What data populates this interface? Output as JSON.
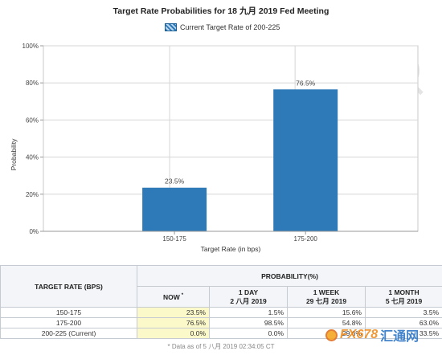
{
  "chart_data": {
    "type": "bar",
    "title": "Target Rate Probabilities for 18 九月 2019 Fed Meeting",
    "legend": "Current Target Rate of 200-225",
    "xlabel": "Target Rate (in bps)",
    "ylabel": "Probability",
    "categories": [
      "150-175",
      "175-200"
    ],
    "values": [
      23.5,
      76.5
    ],
    "data_labels": [
      "23.5%",
      "76.5%"
    ],
    "ylim": [
      0,
      100
    ],
    "yticks": [
      0,
      20,
      40,
      60,
      80,
      100
    ],
    "ytick_labels": [
      "0%",
      "20%",
      "40%",
      "60%",
      "80%",
      "100%"
    ],
    "grid": true,
    "legend_position": "top-center",
    "colors": {
      "bar": "#2e7ab8"
    }
  },
  "table": {
    "col_header": "TARGET RATE (BPS)",
    "group_header": "PROBABILITY(%)",
    "columns": [
      {
        "title": "NOW",
        "marker": "*",
        "subtitle": ""
      },
      {
        "title": "1 DAY",
        "subtitle": "2 八月 2019"
      },
      {
        "title": "1 WEEK",
        "subtitle": "29 七月 2019"
      },
      {
        "title": "1 MONTH",
        "subtitle": "5 七月 2019"
      }
    ],
    "rows": [
      {
        "rate": "150-175",
        "values": [
          "23.5%",
          "1.5%",
          "15.6%",
          "3.5%"
        ]
      },
      {
        "rate": "175-200",
        "values": [
          "76.5%",
          "98.5%",
          "54.8%",
          "63.0%"
        ]
      },
      {
        "rate": "200-225 (Current)",
        "values": [
          "0.0%",
          "0.0%",
          "29.6%",
          "33.5%"
        ]
      }
    ]
  },
  "footnote": "* Data as of 5 八月 2019 02:34:05 CT",
  "watermark": {
    "en": "FX678",
    "cn": "汇通网"
  }
}
